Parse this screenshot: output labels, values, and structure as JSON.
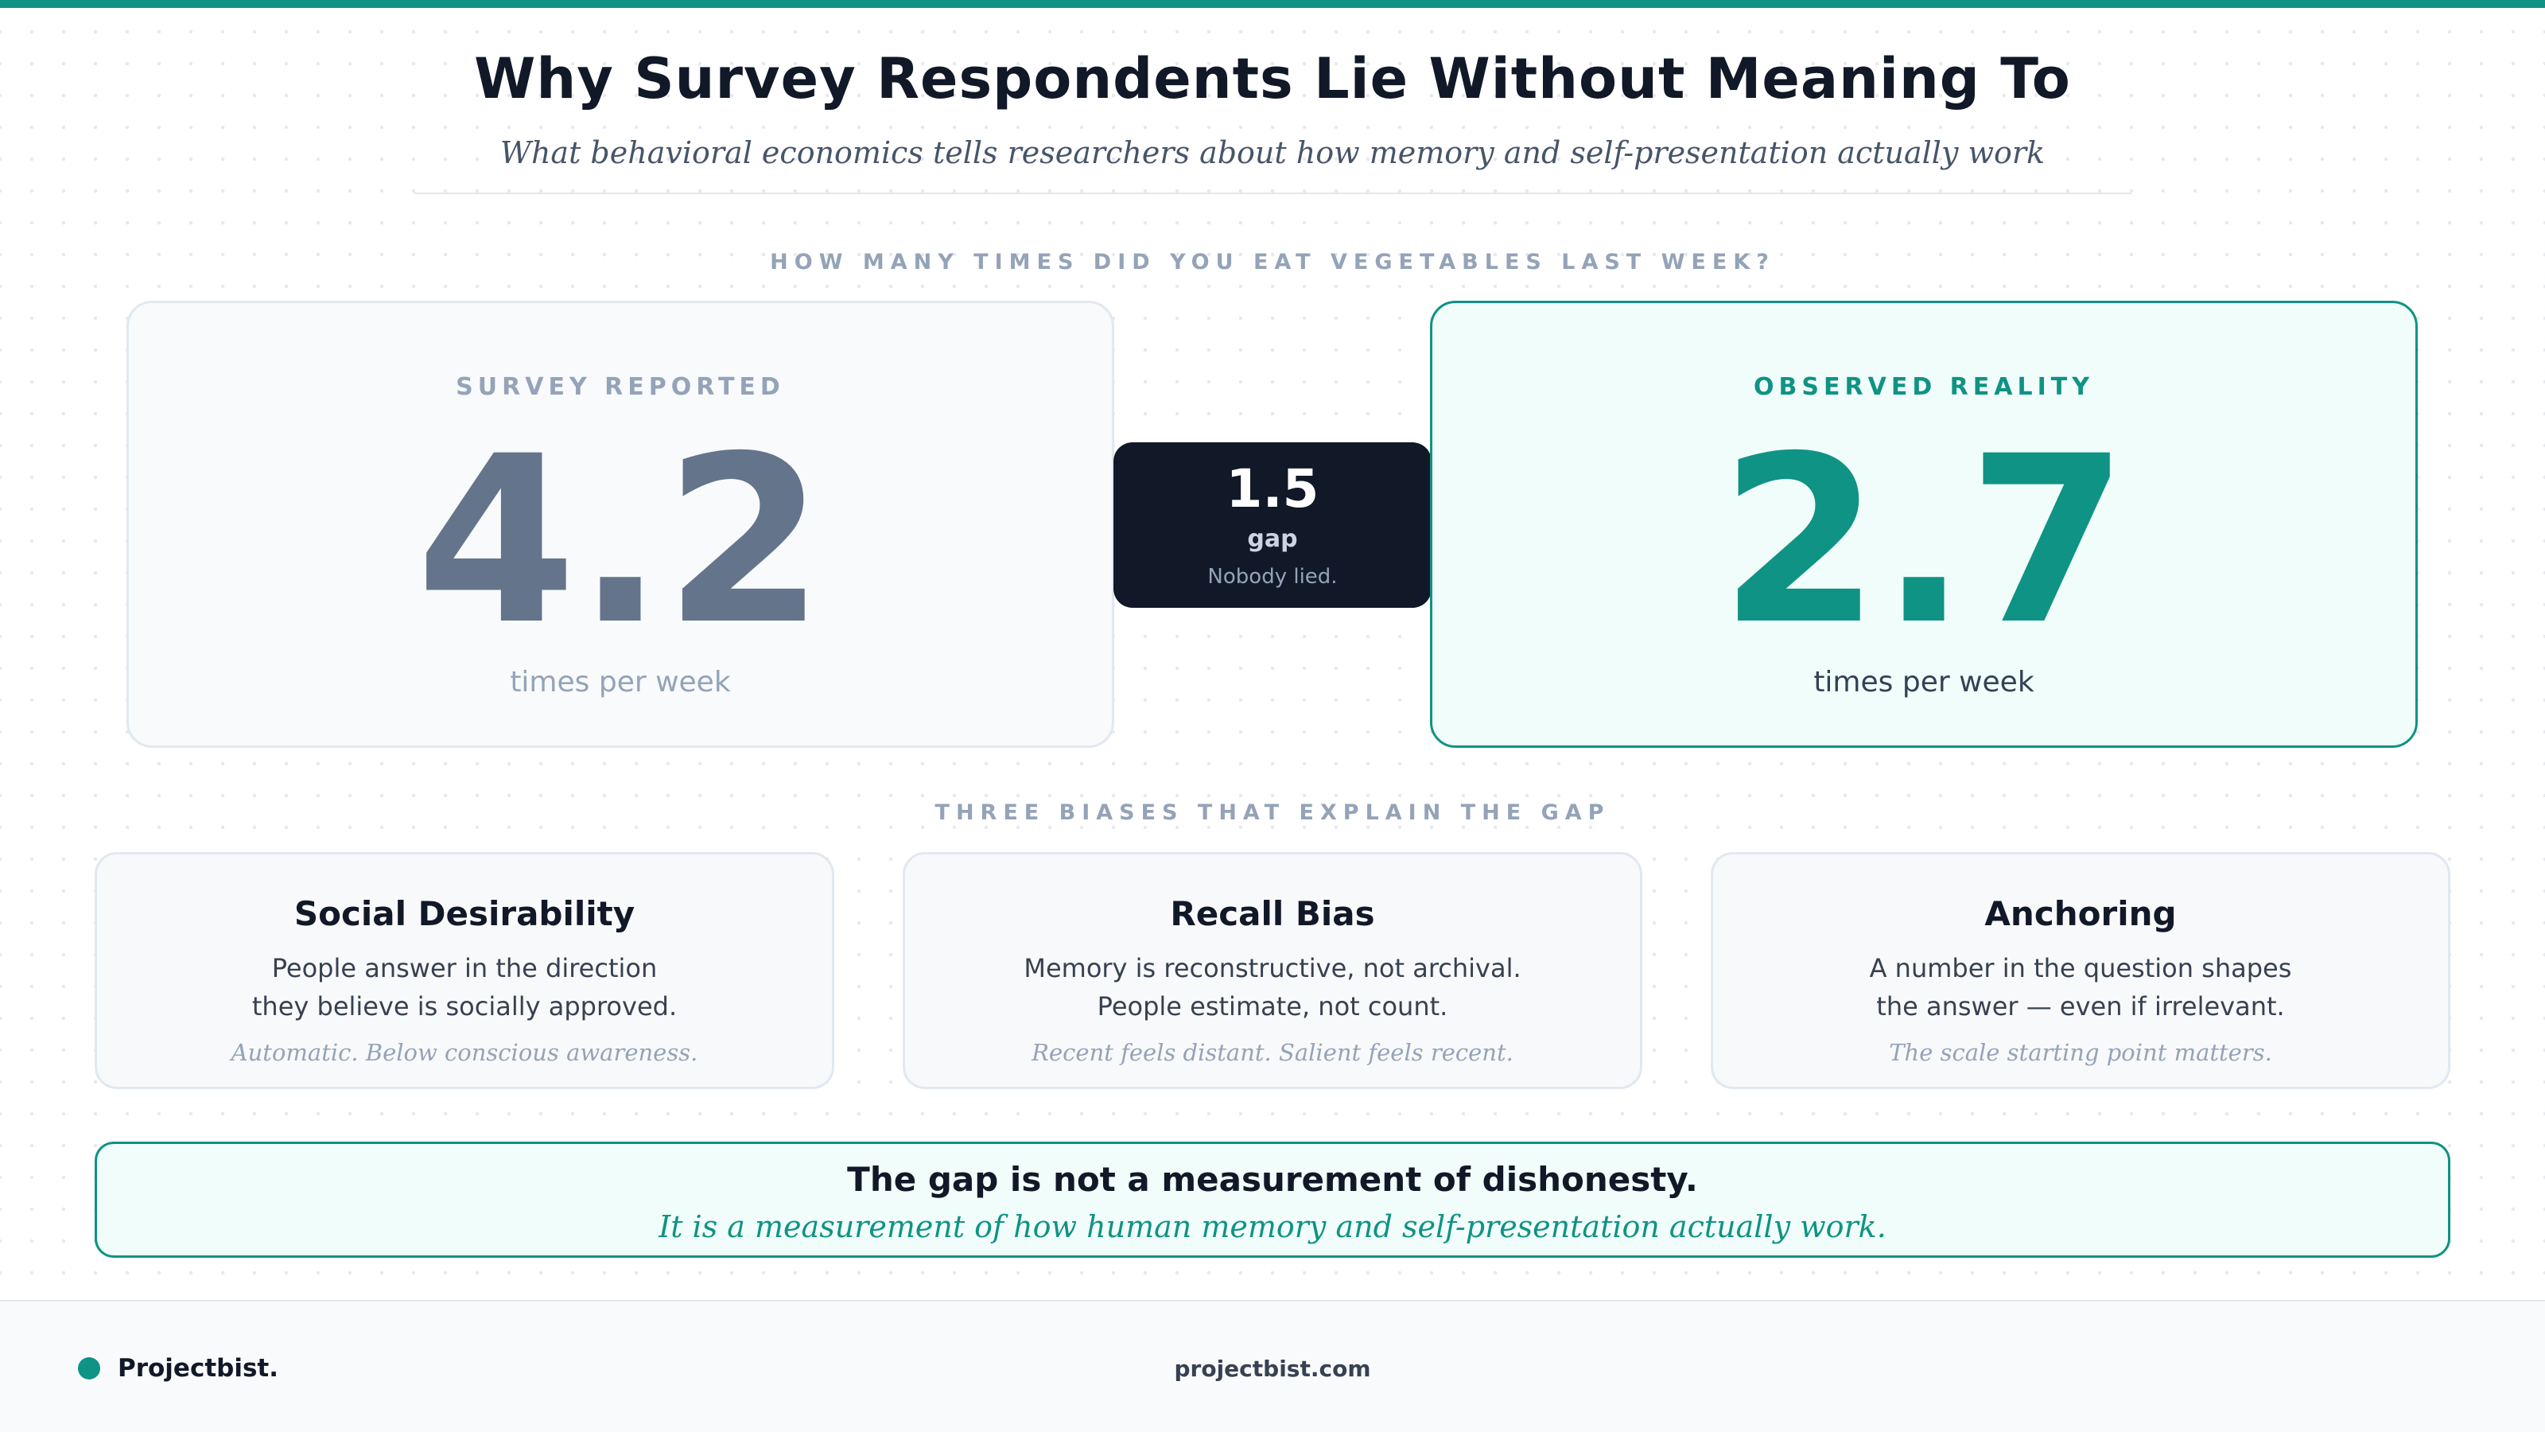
{
  "header": {
    "title": "Why Survey Respondents Lie Without Meaning To",
    "subtitle": "What behavioral economics tells researchers about how memory and self-presentation actually work"
  },
  "question_label": "HOW MANY TIMES DID YOU EAT VEGETABLES LAST WEEK?",
  "reported": {
    "label": "SURVEY REPORTED",
    "value": "4.2",
    "unit": "times per week"
  },
  "gap": {
    "value": "1.5",
    "label": "gap",
    "note": "Nobody lied."
  },
  "observed": {
    "label": "OBSERVED REALITY",
    "value": "2.7",
    "unit": "times per week"
  },
  "biases_label": "THREE BIASES THAT EXPLAIN THE GAP",
  "biases": [
    {
      "title": "Social Desirability",
      "line1": "People answer in the direction",
      "line2": "they believe is socially approved.",
      "note": "Automatic. Below conscious awareness."
    },
    {
      "title": "Recall Bias",
      "line1": "Memory is reconstructive, not archival.",
      "line2": "People estimate, not count.",
      "note": "Recent feels distant. Salient feels recent."
    },
    {
      "title": "Anchoring",
      "line1": "A number in the question shapes",
      "line2": "the answer — even if irrelevant.",
      "note": "The scale starting point matters."
    }
  ],
  "callout": {
    "title": "The gap is not a measurement of dishonesty.",
    "subtitle": "It is a measurement of how human memory and self-presentation actually work."
  },
  "footer": {
    "brand": "Projectbist.",
    "url": "projectbist.com"
  },
  "colors": {
    "accent": "#0f9384",
    "dark": "#111827",
    "muted": "#64748b"
  }
}
